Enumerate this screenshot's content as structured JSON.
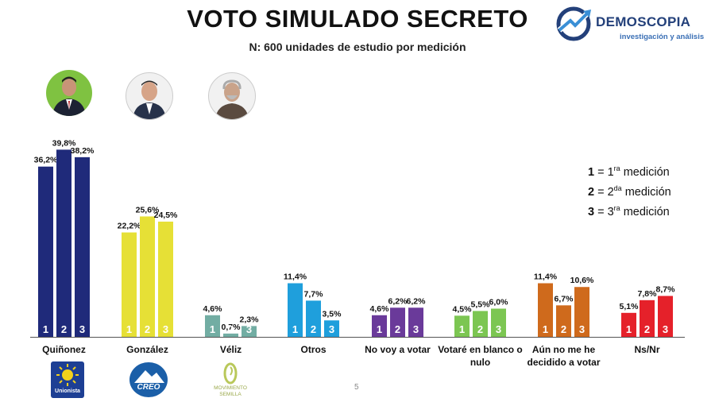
{
  "header": {
    "title": "VOTO SIMULADO SECRETO",
    "subtitle": "N: 600 unidades de estudio por medición"
  },
  "brand": {
    "name": "DEMOSCOPIA",
    "tagline": "investigación y análisis",
    "color": "#23407a"
  },
  "legend": {
    "items": [
      {
        "num": "1",
        "eq": " = 1",
        "sup": "ra",
        "text": " medición"
      },
      {
        "num": "2",
        "eq": " = 2",
        "sup": "da",
        "text": " medición"
      },
      {
        "num": "3",
        "eq": " = 3",
        "sup": "ra",
        "text": " medición"
      }
    ]
  },
  "logos": {
    "unionista": "Unionista",
    "creo": "CREO",
    "semilla": "MOVIMIENTO SEMILLA"
  },
  "page_number": "5",
  "chart_data": {
    "type": "bar",
    "categories": [
      "Quiñonez",
      "González",
      "Véliz",
      "Otros",
      "No voy a votar",
      "Votaré en blanco o nulo",
      "Aún no me he decidido a votar",
      "Ns/Nr"
    ],
    "category_label_lines": [
      [
        "Quiñonez"
      ],
      [
        "González"
      ],
      [
        "Véliz"
      ],
      [
        "Otros"
      ],
      [
        "No voy a votar"
      ],
      [
        "Votaré en blanco o",
        "nulo"
      ],
      [
        "Aún no me he",
        "decidido a votar"
      ],
      [
        "Ns/Nr"
      ]
    ],
    "colors": [
      "#1f2a7a",
      "#e6e036",
      "#72ada3",
      "#1f9fdc",
      "#6a3a9a",
      "#7cc652",
      "#cf6a1c",
      "#e5212a"
    ],
    "series": [
      {
        "name": "1",
        "values": [
          36.2,
          22.2,
          4.6,
          11.4,
          4.6,
          4.5,
          11.4,
          5.1
        ],
        "labels": [
          "36,2%",
          "22,2%",
          "4,6%",
          "11,4%",
          "4,6%",
          "4,5%",
          "11,4%",
          "5,1%"
        ]
      },
      {
        "name": "2",
        "values": [
          39.8,
          25.6,
          0.7,
          7.7,
          6.2,
          5.5,
          6.7,
          7.8
        ],
        "labels": [
          "39,8%",
          "25,6%",
          "0,7%",
          "7,7%",
          "6,2%",
          "5,5%",
          "6,7%",
          "7,8%"
        ]
      },
      {
        "name": "3",
        "values": [
          38.2,
          24.5,
          2.3,
          3.5,
          6.2,
          6.0,
          10.6,
          8.7
        ],
        "labels": [
          "38,2%",
          "24,5%",
          "2,3%",
          "3,5%",
          "6,2%",
          "6,0%",
          "10,6%",
          "8,7%"
        ]
      }
    ],
    "ylim": [
      0,
      40
    ]
  }
}
